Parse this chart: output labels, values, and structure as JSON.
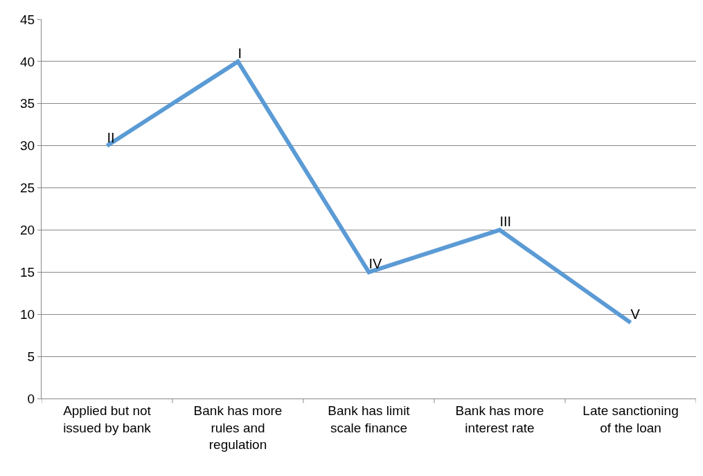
{
  "chart_data": {
    "type": "line",
    "categories": [
      "Applied but not issued by bank",
      "Bank has more rules and regulation",
      "Bank has limit scale finance",
      "Bank has more interest rate",
      "Late sanctioning of the loan"
    ],
    "values": [
      30,
      40,
      15,
      20,
      9
    ],
    "value_labels": [
      "II",
      "I",
      "IV",
      "III",
      "V"
    ],
    "color": "#5b9bd5",
    "ylim": [
      0,
      45
    ],
    "yticks": [
      0,
      5,
      10,
      15,
      20,
      25,
      30,
      35,
      40,
      45
    ],
    "grid": "y",
    "marker": "none",
    "line_style": "solid"
  }
}
